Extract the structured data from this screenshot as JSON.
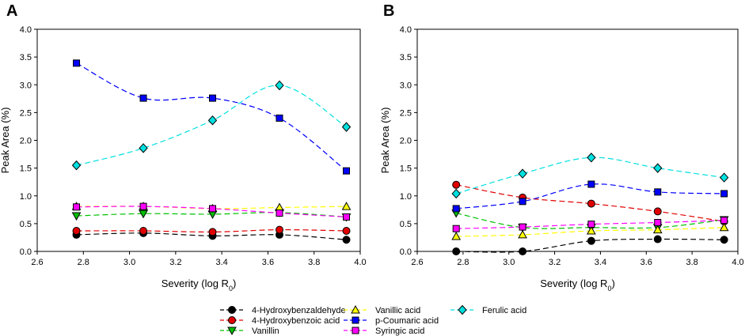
{
  "figure": {
    "panel_labels": [
      "A",
      "B"
    ]
  },
  "legend": {
    "entries": [
      {
        "name": "4-Hydroxybenzaldehyde",
        "color": "#000000",
        "marker": "circle"
      },
      {
        "name": "4-Hydroxybenzoic acid",
        "color": "#e00000",
        "marker": "circle"
      },
      {
        "name": "Vanillin",
        "color": "#00c000",
        "marker": "triangle-down"
      },
      {
        "name": "Vanillic acid",
        "color": "#ffff00",
        "marker": "triangle-up"
      },
      {
        "name": "p-Coumaric acid",
        "color": "#0000ff",
        "marker": "square"
      },
      {
        "name": "Syringic acid",
        "color": "#ff00ff",
        "marker": "square"
      },
      {
        "name": "Ferulic acid",
        "color": "#00e0e0",
        "marker": "diamond"
      }
    ]
  },
  "chart_data": [
    {
      "type": "line",
      "panel": "A",
      "title": "",
      "xlabel": "Severity (log R",
      "xlabel_sub": "0",
      "xlabel_suffix": ")",
      "ylabel": "Peak Area (%)",
      "xlim": [
        2.6,
        4.0
      ],
      "ylim": [
        0.0,
        4.0
      ],
      "xticks": [
        "2.6",
        "2.8",
        "3.0",
        "3.2",
        "3.4",
        "3.6",
        "3.8",
        "4.0"
      ],
      "yticks": [
        "0.0",
        "0.5",
        "1.0",
        "1.5",
        "2.0",
        "2.5",
        "3.0",
        "3.5",
        "4.0"
      ],
      "x": [
        2.77,
        3.06,
        3.36,
        3.65,
        3.94
      ],
      "series": [
        {
          "name": "4-Hydroxybenzaldehyde",
          "values": [
            0.3,
            0.33,
            0.28,
            0.3,
            0.21
          ]
        },
        {
          "name": "4-Hydroxybenzoic acid",
          "values": [
            0.37,
            0.37,
            0.35,
            0.39,
            0.37
          ]
        },
        {
          "name": "Vanillin",
          "values": [
            0.64,
            0.68,
            0.67,
            0.7,
            0.62
          ]
        },
        {
          "name": "Vanillic acid",
          "values": [
            0.81,
            0.81,
            0.77,
            0.79,
            0.81
          ]
        },
        {
          "name": "p-Coumaric acid",
          "values": [
            3.39,
            2.76,
            2.76,
            2.4,
            1.45
          ]
        },
        {
          "name": "Syringic acid",
          "values": [
            0.8,
            0.81,
            0.77,
            0.69,
            0.62
          ]
        },
        {
          "name": "Ferulic acid",
          "values": [
            1.55,
            1.86,
            2.36,
            2.99,
            2.24
          ]
        }
      ]
    },
    {
      "type": "line",
      "panel": "B",
      "title": "",
      "xlabel": "Severity (log R",
      "xlabel_sub": "0",
      "xlabel_suffix": ")",
      "ylabel": "Peak Area (%)",
      "xlim": [
        2.6,
        4.0
      ],
      "ylim": [
        0.0,
        4.0
      ],
      "xticks": [
        "2.6",
        "2.8",
        "3.0",
        "3.2",
        "3.4",
        "3.6",
        "3.8",
        "4.0"
      ],
      "yticks": [
        "0.0",
        "0.5",
        "1.0",
        "1.5",
        "2.0",
        "2.5",
        "3.0",
        "3.5",
        "4.0"
      ],
      "x": [
        2.77,
        3.06,
        3.36,
        3.65,
        3.94
      ],
      "series": [
        {
          "name": "4-Hydroxybenzaldehyde",
          "values": [
            0.0,
            0.0,
            0.19,
            0.22,
            0.21
          ]
        },
        {
          "name": "4-Hydroxybenzoic acid",
          "values": [
            1.2,
            0.97,
            0.86,
            0.72,
            0.54
          ]
        },
        {
          "name": "Vanillin",
          "values": [
            0.69,
            0.43,
            0.43,
            0.43,
            0.57
          ]
        },
        {
          "name": "Vanillic acid",
          "values": [
            0.27,
            0.3,
            0.37,
            0.39,
            0.43
          ]
        },
        {
          "name": "p-Coumaric acid",
          "values": [
            0.77,
            0.9,
            1.21,
            1.07,
            1.04
          ]
        },
        {
          "name": "Syringic acid",
          "values": [
            0.41,
            0.44,
            0.49,
            0.52,
            0.56
          ]
        },
        {
          "name": "Ferulic acid",
          "values": [
            1.04,
            1.4,
            1.69,
            1.5,
            1.33
          ]
        }
      ]
    }
  ]
}
